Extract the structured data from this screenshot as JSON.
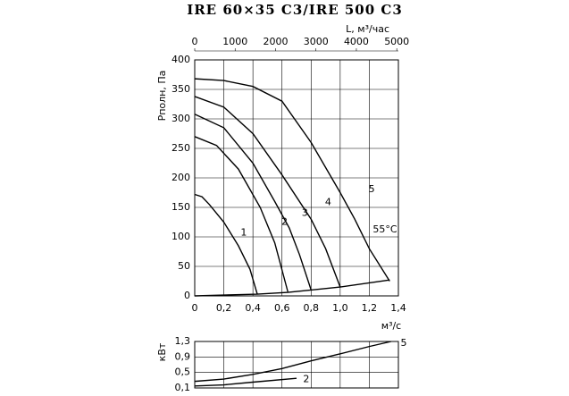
{
  "chart_data": [
    {
      "type": "line",
      "title": "IRE 60×35 C3/IRE 500 C3",
      "ylabel": "Рполн, Па",
      "xlabel": "м³/с",
      "x2label": "L, м³/час",
      "annotation": "55°C",
      "grid": true,
      "xlim": [
        0,
        1.4
      ],
      "xticks": [
        0,
        {
          "value": 0.2,
          "label": "0,2"
        },
        {
          "value": 0.4,
          "label": "0,4"
        },
        {
          "value": 0.6,
          "label": "0,6"
        },
        {
          "value": 0.8,
          "label": "0,8"
        },
        {
          "value": 1.0,
          "label": "1,0"
        },
        {
          "value": 1.2,
          "label": "1,2"
        },
        {
          "value": 1.4,
          "label": "1,4"
        }
      ],
      "x2lim": [
        0,
        5040
      ],
      "x2ticks": [
        0,
        1000,
        2000,
        3000,
        4000,
        5000
      ],
      "ylim": [
        0,
        400
      ],
      "yticks": [
        0,
        50,
        100,
        150,
        200,
        250,
        300,
        350,
        400
      ],
      "series": [
        {
          "name": "1",
          "color": "#000000",
          "x": [
            0,
            0.05,
            0.1,
            0.2,
            0.3,
            0.38,
            0.43
          ],
          "values": [
            172,
            168,
            155,
            125,
            85,
            45,
            3
          ]
        },
        {
          "name": "2",
          "color": "#000000",
          "x": [
            0,
            0.15,
            0.3,
            0.45,
            0.55,
            0.64
          ],
          "values": [
            270,
            255,
            215,
            150,
            90,
            7
          ]
        },
        {
          "name": "3",
          "color": "#000000",
          "x": [
            0,
            0.2,
            0.4,
            0.55,
            0.65,
            0.72,
            0.8
          ],
          "values": [
            308,
            285,
            225,
            160,
            115,
            70,
            10
          ]
        },
        {
          "name": "4",
          "color": "#000000",
          "x": [
            0,
            0.2,
            0.4,
            0.6,
            0.8,
            0.9,
            1.0
          ],
          "values": [
            338,
            320,
            275,
            205,
            130,
            80,
            15
          ]
        },
        {
          "name": "5",
          "color": "#000000",
          "x": [
            0,
            0.2,
            0.4,
            0.6,
            0.8,
            1.0,
            1.1,
            1.2,
            1.34
          ],
          "values": [
            368,
            365,
            355,
            330,
            260,
            175,
            130,
            80,
            25
          ]
        },
        {
          "color": "#000000",
          "x": [
            0,
            0.43,
            0.64,
            0.8,
            1.0,
            1.34
          ],
          "values": [
            0,
            3,
            6,
            10,
            15,
            27
          ]
        }
      ]
    },
    {
      "type": "line",
      "ylabel": "кВт",
      "grid": true,
      "xlim": [
        0,
        1.4
      ],
      "ylim": [
        0.1,
        1.3
      ],
      "yticks": [
        {
          "value": 0.1,
          "label": "0,1"
        },
        {
          "value": 0.5,
          "label": "0,5"
        },
        {
          "value": 0.9,
          "label": "0,9"
        },
        {
          "value": 1.3,
          "label": "1,3"
        }
      ],
      "series": [
        {
          "name": "5",
          "color": "#000000",
          "x": [
            0,
            0.2,
            0.4,
            0.6,
            0.8,
            1.0,
            1.2,
            1.35
          ],
          "values": [
            0.27,
            0.33,
            0.45,
            0.6,
            0.8,
            0.98,
            1.17,
            1.3
          ]
        },
        {
          "name": "2",
          "color": "#000000",
          "x": [
            0,
            0.2,
            0.4,
            0.7
          ],
          "values": [
            0.15,
            0.18,
            0.25,
            0.35
          ]
        }
      ]
    }
  ]
}
